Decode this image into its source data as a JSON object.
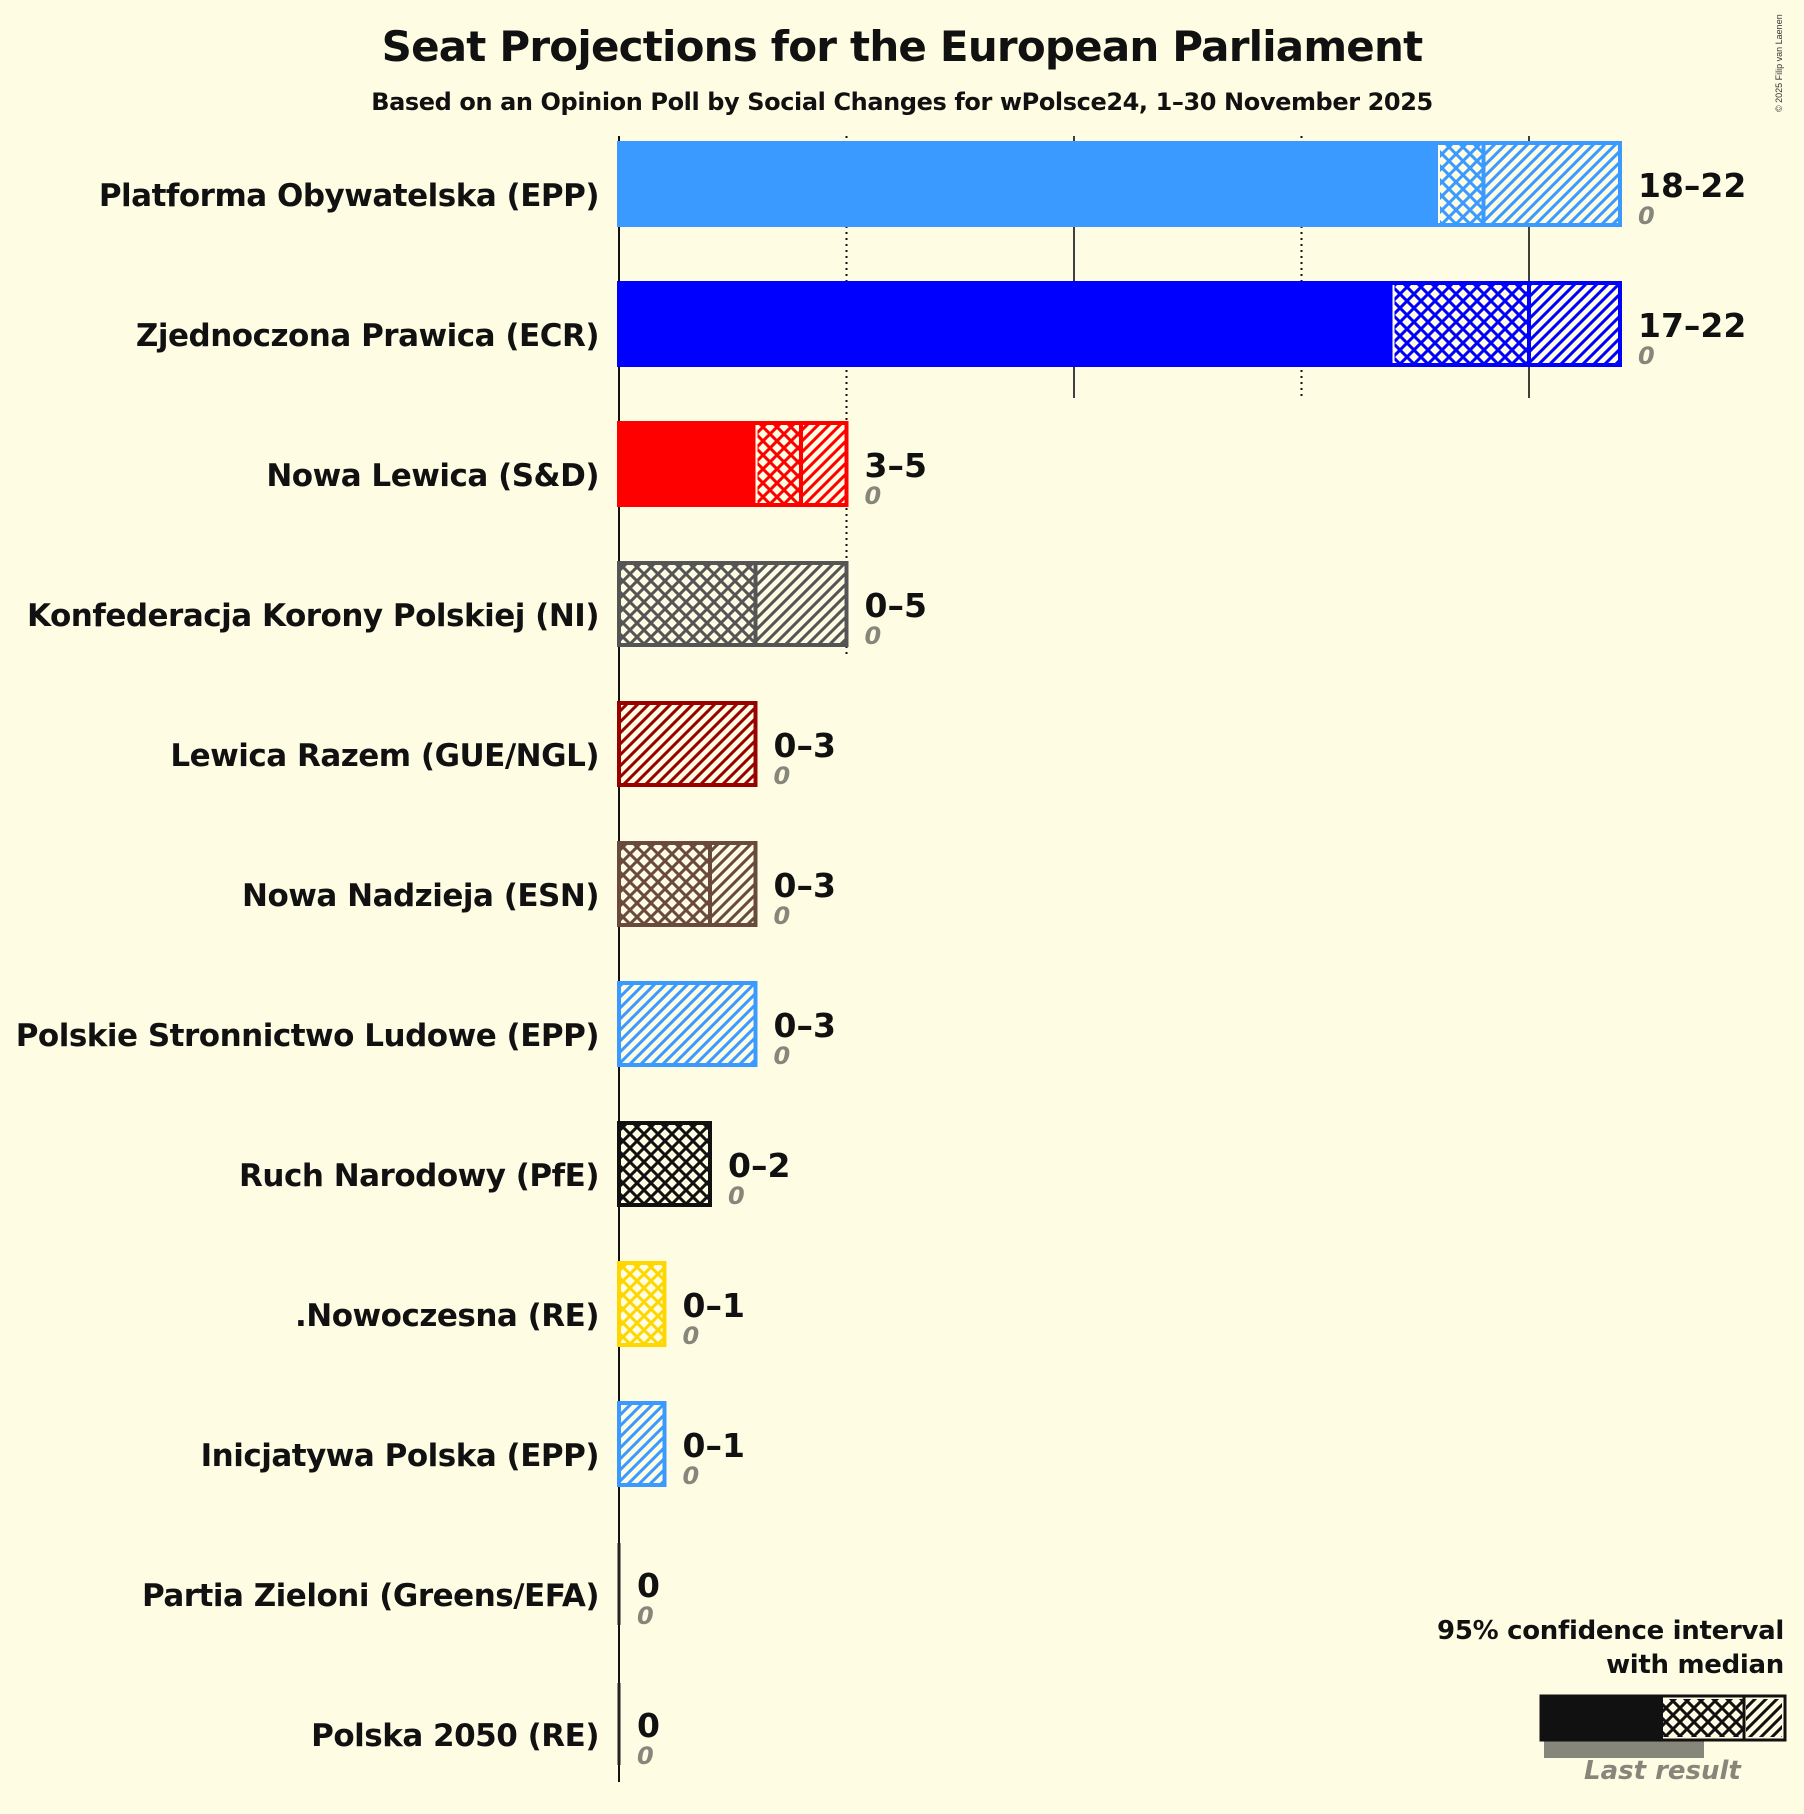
{
  "header": {
    "title": "Seat Projections for the European Parliament",
    "subtitle": "Based on an Opinion Poll by Social Changes for wPolsce24, 1–30 November 2025",
    "credit": "© 2025 Filip van Laenen"
  },
  "legend": {
    "title_line1": "95% confidence interval",
    "title_line2": "with median",
    "last_result_label": "Last result"
  },
  "colors": {
    "background": "#FFFCE4",
    "epp": "#3A9AFF",
    "ecr": "#0000FF",
    "sd": "#FF0000",
    "ni": "#555555",
    "gue_ngl": "#990000",
    "esn": "#6B4A3E",
    "pfe": "#111111",
    "re_nowoczesna": "#FFD700",
    "last_result": "#87867A"
  },
  "chart_data": {
    "type": "bar",
    "orientation": "horizontal",
    "title": "Seat Projections for the European Parliament",
    "subtitle": "Based on an Opinion Poll by Social Changes for wPolsce24, 1–30 November 2025",
    "xlabel": "",
    "ylabel": "",
    "x_gridlines": [
      5,
      10,
      15,
      20
    ],
    "x_gridline_style": {
      "5": "dotted",
      "10": "solid",
      "15": "dotted",
      "20": "solid"
    },
    "xlim": [
      0,
      22
    ],
    "legend": "95% confidence interval with median; Last result",
    "categories": [
      "Platforma Obywatelska (EPP)",
      "Zjednoczona Prawica (ECR)",
      "Nowa Lewica (S&D)",
      "Konfederacja Korony Polskiej (NI)",
      "Lewica Razem (GUE/NGL)",
      "Nowa Nadzieja (ESN)",
      "Polskie Stronnictwo Ludowe (EPP)",
      "Ruch Narodowy (PfE)",
      ".Nowoczesna (RE)",
      "Inicjatywa Polska (EPP)",
      "Partia Zieloni (Greens/EFA)",
      "Polska 2050 (RE)"
    ],
    "series": [
      {
        "name": "CI low",
        "values": [
          18,
          17,
          3,
          0,
          0,
          0,
          0,
          0,
          0,
          0,
          0,
          0
        ]
      },
      {
        "name": "Median",
        "values": [
          19,
          20,
          4,
          3,
          0,
          2,
          0,
          2,
          1,
          0,
          0,
          0
        ]
      },
      {
        "name": "CI high",
        "values": [
          22,
          22,
          5,
          5,
          3,
          3,
          3,
          2,
          1,
          1,
          0,
          0
        ]
      },
      {
        "name": "Last result",
        "values": [
          0,
          0,
          0,
          0,
          0,
          0,
          0,
          0,
          0,
          0,
          0,
          0
        ]
      }
    ],
    "range_labels": [
      "18–22",
      "17–22",
      "3–5",
      "0–5",
      "0–3",
      "0–3",
      "0–3",
      "0–2",
      "0–1",
      "0–1",
      "0",
      "0"
    ],
    "last_result_labels": [
      "0",
      "0",
      "0",
      "0",
      "0",
      "0",
      "0",
      "0",
      "0",
      "0",
      "0",
      "0"
    ]
  },
  "parties": [
    {
      "name": "Platforma Obywatelska (EPP)",
      "range": "18–22",
      "last": "0",
      "color": "#3A9AFF",
      "low": 18,
      "median": 19,
      "high": 22
    },
    {
      "name": "Zjednoczona Prawica (ECR)",
      "range": "17–22",
      "last": "0",
      "color": "#0000FF",
      "low": 17,
      "median": 20,
      "high": 22
    },
    {
      "name": "Nowa Lewica (S&D)",
      "range": "3–5",
      "last": "0",
      "color": "#FF0000",
      "low": 3,
      "median": 4,
      "high": 5
    },
    {
      "name": "Konfederacja Korony Polskiej (NI)",
      "range": "0–5",
      "last": "0",
      "color": "#555555",
      "low": 0,
      "median": 3,
      "high": 5
    },
    {
      "name": "Lewica Razem (GUE/NGL)",
      "range": "0–3",
      "last": "0",
      "color": "#990000",
      "low": 0,
      "median": 0,
      "high": 3
    },
    {
      "name": "Nowa Nadzieja (ESN)",
      "range": "0–3",
      "last": "0",
      "color": "#6B4A3E",
      "low": 0,
      "median": 2,
      "high": 3
    },
    {
      "name": "Polskie Stronnictwo Ludowe (EPP)",
      "range": "0–3",
      "last": "0",
      "color": "#3A9AFF",
      "low": 0,
      "median": 0,
      "high": 3
    },
    {
      "name": "Ruch Narodowy (PfE)",
      "range": "0–2",
      "last": "0",
      "color": "#111111",
      "low": 0,
      "median": 2,
      "high": 2
    },
    {
      "name": ".Nowoczesna (RE)",
      "range": "0–1",
      "last": "0",
      "color": "#FFD700",
      "low": 0,
      "median": 1,
      "high": 1
    },
    {
      "name": "Inicjatywa Polska (EPP)",
      "range": "0–1",
      "last": "0",
      "color": "#3A9AFF",
      "low": 0,
      "median": 0,
      "high": 1
    },
    {
      "name": "Partia Zieloni (Greens/EFA)",
      "range": "0",
      "last": "0",
      "color": "#3A9AFF",
      "low": 0,
      "median": 0,
      "high": 0
    },
    {
      "name": "Polska 2050 (RE)",
      "range": "0",
      "last": "0",
      "color": "#FFD700",
      "low": 0,
      "median": 0,
      "high": 0
    }
  ]
}
